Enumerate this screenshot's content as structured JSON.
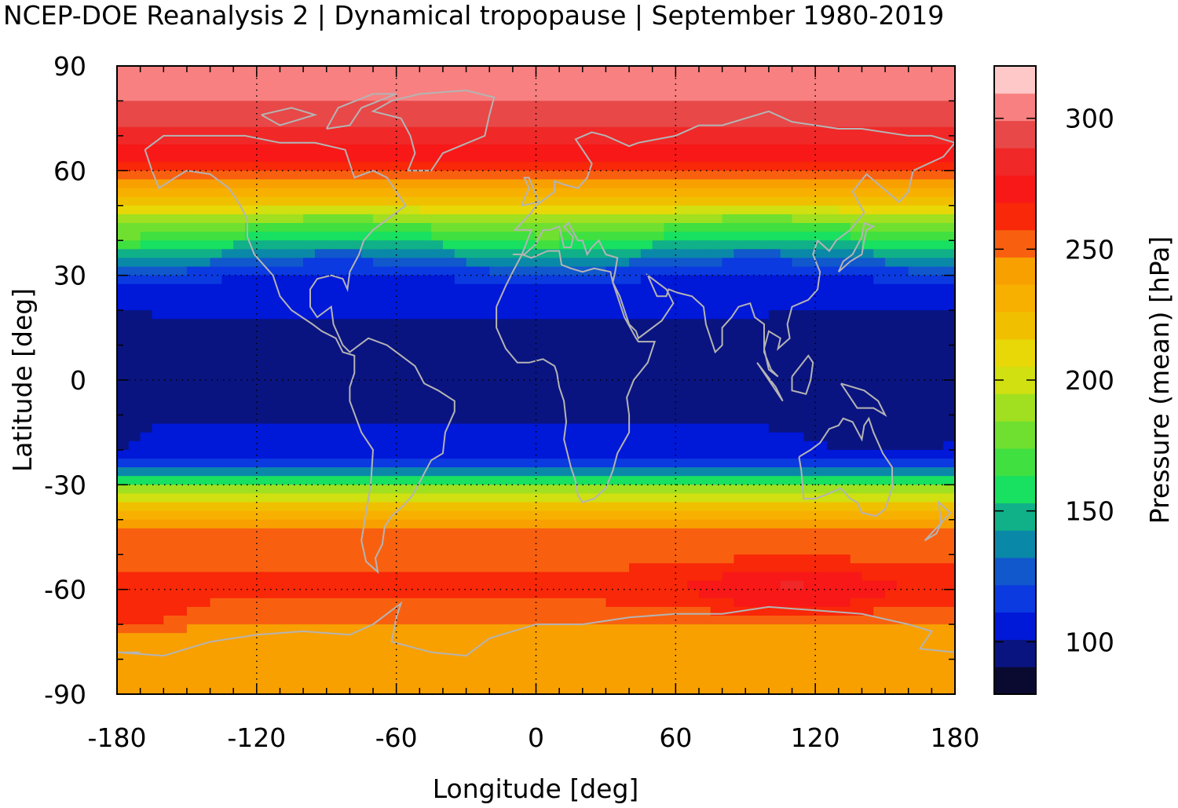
{
  "chart_data": {
    "type": "heatmap",
    "title": "NCEP-DOE Reanalysis 2 | Dynamical tropopause | September 1980-2019",
    "xlabel": "Longitude [deg]",
    "ylabel": "Latitude [deg]",
    "colorbar_label": "Pressure (mean) [hPa]",
    "xlim": [
      -180,
      180
    ],
    "ylim": [
      -90,
      90
    ],
    "x_ticks": [
      "-180",
      "-120",
      "-60",
      "0",
      "60",
      "120",
      "180"
    ],
    "y_ticks": [
      "90",
      "60",
      "30",
      "0",
      "-30",
      "-60",
      "-90"
    ],
    "colorbar_ticks": [
      "100",
      "150",
      "200",
      "250",
      "300"
    ],
    "colorbar_range": [
      80,
      320
    ],
    "grid": "dotted",
    "coastlines_color": "#b4b4b4",
    "palette": [
      "#0a0a30",
      "#0a1480",
      "#0018d8",
      "#0a3ae0",
      "#1058cc",
      "#0a88a8",
      "#10b088",
      "#18e060",
      "#40e040",
      "#70e030",
      "#a0e020",
      "#d0e010",
      "#e8d808",
      "#f0c000",
      "#f8b000",
      "#f8a000",
      "#f86010",
      "#f82808",
      "#f81818",
      "#f02828",
      "#e84848",
      "#f88080",
      "#ffc8c8"
    ],
    "latitude_profile": {
      "lat": [
        90,
        85,
        80,
        75,
        70,
        65,
        60,
        55,
        50,
        45,
        40,
        35,
        30,
        25,
        20,
        15,
        10,
        5,
        0,
        -5,
        -10,
        -15,
        -20,
        -25,
        -30,
        -35,
        -40,
        -45,
        -50,
        -55,
        -60,
        -65,
        -70,
        -75,
        -80,
        -85,
        -90
      ],
      "pressure_hPa": [
        305,
        305,
        300,
        292,
        282,
        272,
        262,
        240,
        215,
        180,
        160,
        135,
        112,
        105,
        102,
        100,
        100,
        100,
        100,
        100,
        100,
        102,
        106,
        120,
        175,
        215,
        240,
        250,
        252,
        258,
        262,
        255,
        245,
        240,
        238,
        240,
        240
      ]
    }
  }
}
